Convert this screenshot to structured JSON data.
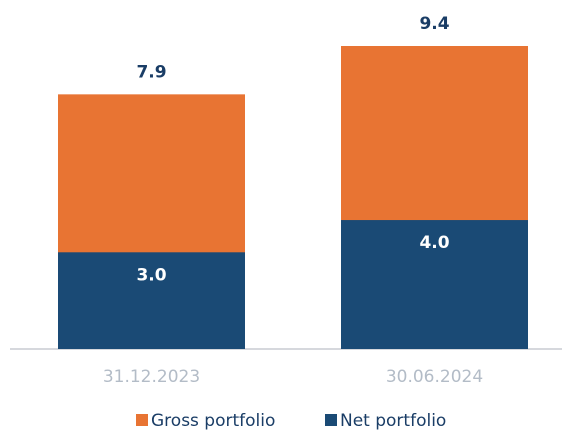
{
  "chart_data": {
    "type": "bar",
    "categories": [
      "31.12.2023",
      "30.06.2024"
    ],
    "series": [
      {
        "name": "Gross portfolio",
        "color": "#e87433",
        "values": [
          7.9,
          9.4
        ],
        "value_labels": [
          "7.9",
          "9.4"
        ]
      },
      {
        "name": "Net portfolio",
        "color": "#1a4a75",
        "values": [
          3.0,
          4.0
        ],
        "value_labels": [
          "3.0",
          "4.0"
        ]
      }
    ]
  }
}
